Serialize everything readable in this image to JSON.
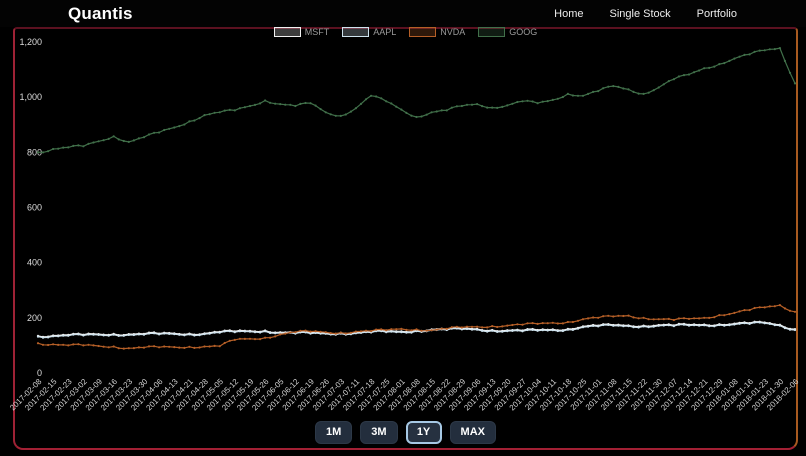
{
  "brand": "Quantis",
  "nav": [
    {
      "label": "Home"
    },
    {
      "label": "Single Stock"
    },
    {
      "label": "Portfolio"
    }
  ],
  "range_buttons": [
    {
      "label": "1M",
      "selected": false
    },
    {
      "label": "3M",
      "selected": false
    },
    {
      "label": "1Y",
      "selected": true
    },
    {
      "label": "MAX",
      "selected": false
    }
  ],
  "colors": {
    "background": "#000000",
    "card_border_left": "#9e2235",
    "card_border_right": "#a85a20",
    "card_border_bottom": "#a32034",
    "button_bg": "#232e3d",
    "button_selected_border": "#a6c8e4"
  },
  "chart_data": {
    "type": "line",
    "title": "",
    "xlabel": "",
    "ylabel": "",
    "ylim": [
      0,
      1200
    ],
    "yticks": [
      0,
      200,
      400,
      600,
      800,
      1000,
      1200
    ],
    "grid": false,
    "legend_position": "top",
    "x": [
      "2017-02-08",
      "2017-02-15",
      "2017-02-23",
      "2017-03-02",
      "2017-03-09",
      "2017-03-16",
      "2017-03-23",
      "2017-03-30",
      "2017-04-06",
      "2017-04-13",
      "2017-04-21",
      "2017-04-28",
      "2017-05-05",
      "2017-05-12",
      "2017-05-19",
      "2017-05-26",
      "2017-06-05",
      "2017-06-12",
      "2017-06-19",
      "2017-06-26",
      "2017-07-03",
      "2017-07-11",
      "2017-07-18",
      "2017-07-25",
      "2017-08-01",
      "2017-08-08",
      "2017-08-15",
      "2017-08-22",
      "2017-08-29",
      "2017-09-06",
      "2017-09-13",
      "2017-09-20",
      "2017-09-27",
      "2017-10-04",
      "2017-10-11",
      "2017-10-18",
      "2017-10-25",
      "2017-11-01",
      "2017-11-08",
      "2017-11-15",
      "2017-11-22",
      "2017-11-30",
      "2017-12-07",
      "2017-12-14",
      "2017-12-21",
      "2017-12-29",
      "2018-01-08",
      "2018-01-16",
      "2018-01-23",
      "2018-01-30",
      "2018-02-06"
    ],
    "series": [
      {
        "name": "MSFT",
        "color": "#f2f2f2",
        "values": [
          135,
          136,
          138,
          139,
          141,
          142,
          141,
          142,
          143,
          144,
          143,
          144,
          149,
          151,
          153,
          154,
          148,
          146,
          146,
          145,
          146,
          147,
          150,
          151,
          151,
          155,
          158,
          159,
          161,
          160,
          156,
          155,
          154,
          156,
          158,
          160,
          169,
          172,
          174,
          173,
          172,
          174,
          173,
          175,
          176,
          177,
          179,
          181,
          183,
          175,
          159
        ]
      },
      {
        "name": "AAPL",
        "color": "#cfe3ee",
        "values": [
          132,
          133,
          135,
          136,
          138,
          139,
          138,
          139,
          140,
          141,
          140,
          141,
          146,
          148,
          150,
          151,
          145,
          143,
          143,
          142,
          143,
          144,
          147,
          148,
          148,
          152,
          155,
          156,
          158,
          157,
          153,
          152,
          151,
          153,
          155,
          157,
          166,
          169,
          171,
          170,
          169,
          171,
          170,
          172,
          173,
          174,
          176,
          178,
          180,
          172,
          156
        ]
      },
      {
        "name": "NVDA",
        "color": "#b55f27",
        "values": [
          108,
          104,
          100,
          100,
          98,
          96,
          90,
          92,
          93,
          94,
          95,
          96,
          97,
          120,
          124,
          128,
          140,
          148,
          150,
          148,
          146,
          150,
          152,
          155,
          160,
          158,
          155,
          160,
          165,
          168,
          170,
          172,
          175,
          178,
          182,
          185,
          195,
          200,
          205,
          208,
          200,
          195,
          192,
          196,
          200,
          210,
          218,
          228,
          238,
          246,
          222
        ]
      },
      {
        "name": "GOOG",
        "color": "#41704a",
        "values": [
          800,
          812,
          818,
          822,
          840,
          858,
          838,
          855,
          872,
          890,
          912,
          935,
          945,
          952,
          968,
          988,
          975,
          968,
          978,
          945,
          932,
          960,
          1005,
          985,
          955,
          928,
          945,
          952,
          968,
          975,
          962,
          970,
          985,
          978,
          990,
          1012,
          1005,
          1022,
          1040,
          1028,
          1012,
          1035,
          1065,
          1082,
          1105,
          1120,
          1140,
          1155,
          1170,
          1178,
          1050
        ]
      }
    ]
  }
}
